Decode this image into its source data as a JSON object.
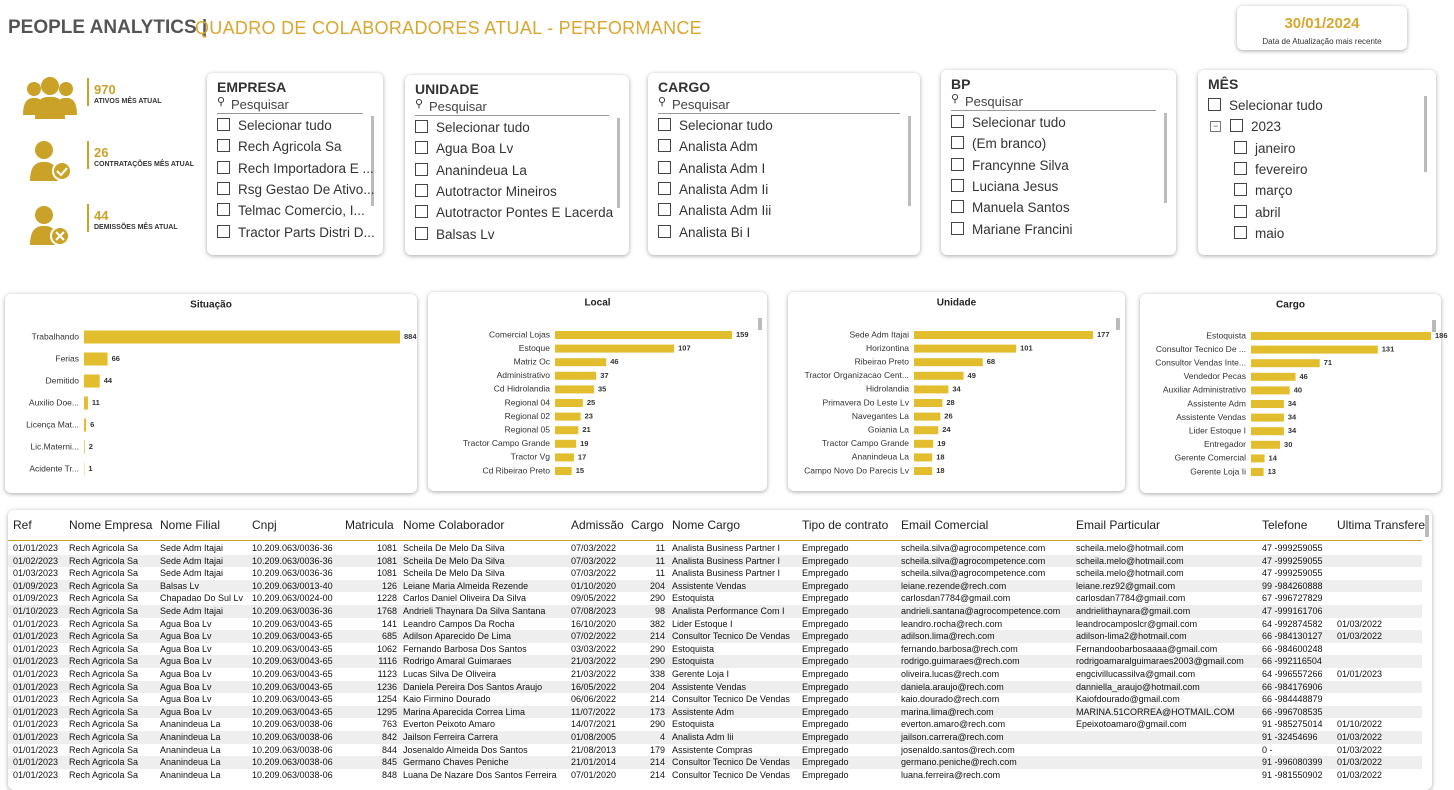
{
  "header": {
    "title": "PEOPLE ANALYTICS |",
    "subtitle": "QUADRO DE COLABORADORES ATUAL - PERFORMANCE",
    "date": "30/01/2024",
    "date_label": "Data de Atualização mais recente"
  },
  "kpis": [
    {
      "value": 970,
      "label": "ATIVOS MÊS ATUAL"
    },
    {
      "value": 26,
      "label": "CONTRATAÇÕES MÊS ATUAL"
    },
    {
      "value": 44,
      "label": "DEMISSÕES MÊS ATUAL"
    }
  ],
  "slicers": [
    {
      "title": "EMPRESA",
      "search": "Pesquisar",
      "items": [
        "Selecionar tudo",
        "Rech Agricola Sa",
        "Rech Importadora E ...",
        "Rsg Gestao De Ativo...",
        "Telmac Comercio, I...",
        "Tractor Parts Distri D..."
      ]
    },
    {
      "title": "UNIDADE",
      "search": "Pesquisar",
      "items": [
        "Selecionar tudo",
        "Agua Boa Lv",
        "Ananindeua La",
        "Autotractor Mineiros",
        "Autotractor Pontes E Lacerda",
        "Balsas Lv"
      ]
    },
    {
      "title": "CARGO",
      "search": "Pesquisar",
      "items": [
        "Selecionar tudo",
        "Analista Adm",
        "Analista Adm I",
        "Analista Adm Ii",
        "Analista Adm Iii",
        "Analista Bi I"
      ]
    },
    {
      "title": "BP",
      "search": "Pesquisar",
      "items": [
        "Selecionar tudo",
        "(Em branco)",
        "Francynne Silva",
        "Luciana Jesus",
        "Manuela Santos",
        "Mariane Francini"
      ]
    },
    {
      "title": "MÊS",
      "items": [
        "Selecionar tudo",
        "2023",
        "janeiro",
        "fevereiro",
        "março",
        "abril",
        "maio"
      ]
    }
  ],
  "chart_data": [
    {
      "type": "bar",
      "title": "Situação",
      "color": "#e2bd2d",
      "categories": [
        "Trabalhando",
        "Ferias",
        "Demitido",
        "Auxilio Doe...",
        "Licença Mat...",
        "Lic.Materni...",
        "Acidente Tr..."
      ],
      "values": [
        884,
        66,
        44,
        11,
        6,
        2,
        1
      ]
    },
    {
      "type": "bar",
      "title": "Local",
      "color": "#e2bd2d",
      "categories": [
        "Comercial Lojas",
        "Estoque",
        "Matriz Oc",
        "Administrativo",
        "Cd Hidrolandia",
        "Regional 04",
        "Regional 02",
        "Regional 05",
        "Tractor Campo Grande",
        "Tractor Vg",
        "Cd Ribeirao Preto"
      ],
      "values": [
        159,
        107,
        46,
        37,
        35,
        25,
        23,
        21,
        19,
        17,
        15
      ]
    },
    {
      "type": "bar",
      "title": "Unidade",
      "color": "#e2bd2d",
      "categories": [
        "Sede Adm Itajai",
        "Horizontina",
        "Ribeirao Preto",
        "Tractor Organizacao Cent...",
        "Hidrolandia",
        "Primavera Do Leste Lv",
        "Navegantes La",
        "Goiania La",
        "Tractor Campo Grande",
        "Ananindeua La",
        "Campo Novo Do Parecis Lv"
      ],
      "values": [
        177,
        101,
        68,
        49,
        34,
        28,
        26,
        24,
        19,
        18,
        18
      ]
    },
    {
      "type": "bar",
      "title": "Cargo",
      "color": "#e2bd2d",
      "categories": [
        "Estoquista",
        "Consultor Tecnico De ...",
        "Consultor Vendas Inte...",
        "Vendedor Pecas",
        "Auxiliar Administrativo",
        "Assistente Adm",
        "Assistente Vendas",
        "Lider Estoque I",
        "Entregador",
        "Gerente Comercial",
        "Gerente Loja Ii"
      ],
      "values": [
        186,
        131,
        71,
        46,
        40,
        34,
        34,
        34,
        30,
        14,
        13
      ]
    }
  ],
  "table": {
    "columns": [
      "Ref",
      "Nome Empresa",
      "Nome Filial",
      "Cnpj",
      "Matricula",
      "Nome Colaborador",
      "Admissão",
      "Cargo",
      "Nome Cargo",
      "Tipo de contrato",
      "Email Comercial",
      "Email Particular",
      "Telefone",
      "Ultima Transfere"
    ],
    "rows": [
      [
        "01/01/2023",
        "Rech Agricola Sa",
        "Sede Adm Itajai",
        "10.209.063/0036-36",
        1081,
        "Scheila De Melo Da Silva",
        "07/03/2022",
        11,
        "Analista Business Partner I",
        "Empregado",
        "scheila.silva@agrocompetence.com",
        "scheila.melo@hotmail.com",
        "47 -999259055",
        null
      ],
      [
        "01/02/2023",
        "Rech Agricola Sa",
        "Sede Adm Itajai",
        "10.209.063/0036-36",
        1081,
        "Scheila De Melo Da Silva",
        "07/03/2022",
        11,
        "Analista Business Partner I",
        "Empregado",
        "scheila.silva@agrocompetence.com",
        "scheila.melo@hotmail.com",
        "47 -999259055",
        null
      ],
      [
        "01/03/2023",
        "Rech Agricola Sa",
        "Sede Adm Itajai",
        "10.209.063/0036-36",
        1081,
        "Scheila De Melo Da Silva",
        "07/03/2022",
        11,
        "Analista Business Partner I",
        "Empregado",
        "scheila.silva@agrocompetence.com",
        "scheila.melo@hotmail.com",
        "47 -999259055",
        null
      ],
      [
        "01/09/2023",
        "Rech Agricola Sa",
        "Balsas Lv",
        "10.209.063/0013-40",
        126,
        "Leiane Maria Almeida Rezende",
        "01/10/2020",
        204,
        "Assistente Vendas",
        "Empregado",
        "leiane.rezende@rech.com",
        "leiane.rez92@gmail.com",
        "99 -984260888",
        null
      ],
      [
        "01/09/2023",
        "Rech Agricola Sa",
        "Chapadao Do Sul Lv",
        "10.209.063/0024-00",
        1228,
        "Carlos Daniel Oliveira Da Silva",
        "09/05/2022",
        290,
        "Estoquista",
        "Empregado",
        "carlosdan7784@gmail.com",
        "carlosdan7784@gmail.com",
        "67 -996727829",
        null
      ],
      [
        "01/10/2023",
        "Rech Agricola Sa",
        "Sede Adm Itajai",
        "10.209.063/0036-36",
        1768,
        "Andrieli Thaynara Da Silva Santana",
        "07/08/2023",
        98,
        "Analista Performance Com I",
        "Empregado",
        "andrieli.santana@agrocompetence.com",
        "andrielithaynara@gmail.com",
        "47 -999161706",
        null
      ],
      [
        "01/01/2023",
        "Rech Agricola Sa",
        "Agua Boa Lv",
        "10.209.063/0043-65",
        141,
        "Leandro Campos Da Rocha",
        "16/10/2020",
        382,
        "Lider Estoque I",
        "Empregado",
        "leandro.rocha@rech.com",
        "leandrocamposlcr@gmail.com",
        "64 -992874582",
        "01/03/2022"
      ],
      [
        "01/01/2023",
        "Rech Agricola Sa",
        "Agua Boa Lv",
        "10.209.063/0043-65",
        685,
        "Adilson Aparecido De Lima",
        "07/02/2022",
        214,
        "Consultor Tecnico De Vendas",
        "Empregado",
        "adilson.lima@rech.com",
        "adilson-lima2@hotmail.com",
        "66 -984130127",
        "01/03/2022"
      ],
      [
        "01/01/2023",
        "Rech Agricola Sa",
        "Agua Boa Lv",
        "10.209.063/0043-65",
        1062,
        "Fernando Barbosa Dos Santos",
        "03/03/2022",
        290,
        "Estoquista",
        "Empregado",
        "fernando.barbosa@rech.com",
        "Fernandoobarbosaaaa@gmail.com",
        "66 -984600248",
        null
      ],
      [
        "01/01/2023",
        "Rech Agricola Sa",
        "Agua Boa Lv",
        "10.209.063/0043-65",
        1116,
        "Rodrigo Amaral Guimaraes",
        "21/03/2022",
        290,
        "Estoquista",
        "Empregado",
        "rodrigo.guimaraes@rech.com",
        "rodrigoamaralguimaraes2003@gmail.com",
        "66 -992116504",
        null
      ],
      [
        "01/01/2023",
        "Rech Agricola Sa",
        "Agua Boa Lv",
        "10.209.063/0043-65",
        1123,
        "Lucas Silva De Oliveira",
        "21/03/2022",
        338,
        "Gerente Loja I",
        "Empregado",
        "oliveira.lucas@rech.com",
        "engcivillucassilva@gmail.com",
        "64 -996557266",
        "01/01/2023"
      ],
      [
        "01/01/2023",
        "Rech Agricola Sa",
        "Agua Boa Lv",
        "10.209.063/0043-65",
        1236,
        "Daniela Pereira Dos Santos Araujo",
        "16/05/2022",
        204,
        "Assistente Vendas",
        "Empregado",
        "daniela.araujo@rech.com",
        "danniella_araujo@hotmail.com",
        "66 -984176906",
        null
      ],
      [
        "01/01/2023",
        "Rech Agricola Sa",
        "Agua Boa Lv",
        "10.209.063/0043-65",
        1254,
        "Kaio Firmino Dourado",
        "06/06/2022",
        214,
        "Consultor Tecnico De Vendas",
        "Empregado",
        "kaio.dourado@rech.com",
        "Kaiofdourado@gmail.com",
        "66 -984448879",
        null
      ],
      [
        "01/01/2023",
        "Rech Agricola Sa",
        "Agua Boa Lv",
        "10.209.063/0043-65",
        1295,
        "Marina Aparecida Correa Lima",
        "11/07/2022",
        173,
        "Assistente Adm",
        "Empregado",
        "marina.lima@rech.com",
        "MARINA.51CORREA@HOTMAIL.COM",
        "66 -996708535",
        null
      ],
      [
        "01/01/2023",
        "Rech Agricola Sa",
        "Ananindeua La",
        "10.209.063/0038-06",
        763,
        "Everton Peixoto Amaro",
        "14/07/2021",
        290,
        "Estoquista",
        "Empregado",
        "everton.amaro@rech.com",
        "Epeixotoamaro@gmail.com",
        "91 -985275014",
        "01/10/2022"
      ],
      [
        "01/01/2023",
        "Rech Agricola Sa",
        "Ananindeua La",
        "10.209.063/0038-06",
        842,
        "Jailson Ferreira Carrera",
        "01/08/2005",
        4,
        "Analista Adm Iii",
        "Empregado",
        "jailson.carrera@rech.com",
        null,
        "91 -32454696",
        "01/03/2022"
      ],
      [
        "01/01/2023",
        "Rech Agricola Sa",
        "Ananindeua La",
        "10.209.063/0038-06",
        844,
        "Josenaldo Almeida Dos Santos",
        "21/08/2013",
        179,
        "Assistente Compras",
        "Empregado",
        "josenaldo.santos@rech.com",
        null,
        "0 -",
        "01/03/2022"
      ],
      [
        "01/01/2023",
        "Rech Agricola Sa",
        "Ananindeua La",
        "10.209.063/0038-06",
        845,
        "Germano Chaves Peniche",
        "21/01/2014",
        214,
        "Consultor Tecnico De Vendas",
        "Empregado",
        "germano.peniche@rech.com",
        null,
        "91 -996080399",
        "01/03/2022"
      ],
      [
        "01/01/2023",
        "Rech Agricola Sa",
        "Ananindeua La",
        "10.209.063/0038-06",
        848,
        "Luana De Nazare Dos Santos Ferreira",
        "07/01/2020",
        214,
        "Consultor Tecnico De Vendas",
        "Empregado",
        "luana.ferreira@rech.com",
        null,
        "91 -981550902",
        "01/03/2022"
      ]
    ]
  }
}
